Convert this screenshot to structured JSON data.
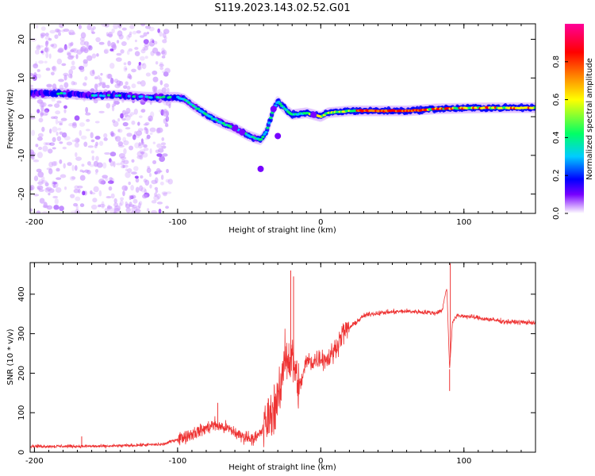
{
  "figure_title": "S119.2023.143.02.52.G01",
  "chart_data": [
    {
      "type": "heatmap",
      "xlabel": "Height of straight line (km)",
      "ylabel": "Frequency (Hz)",
      "xlim": [
        -203,
        150
      ],
      "ylim": [
        -25,
        24
      ],
      "x_ticks": [
        -200,
        -100,
        0,
        100
      ],
      "y_ticks": [
        -20,
        -10,
        0,
        10,
        20
      ],
      "x_tick_labels": [
        "-200",
        "-100",
        "0",
        "100"
      ],
      "y_tick_labels": [
        "-20",
        "-10",
        "0",
        "10",
        "20"
      ],
      "colorbar": {
        "label": "Normalized spectral amplitude",
        "range": [
          0.0,
          1.0
        ],
        "ticks": [
          "0.0",
          "0.2",
          "0.4",
          "0.6",
          "0.8"
        ],
        "colormap": [
          "#ffffff",
          "#cc99ff",
          "#7700ff",
          "#0000ff",
          "#00ccff",
          "#00ff66",
          "#ffff00",
          "#ff8800",
          "#ff0000",
          "#ff0099"
        ]
      },
      "ridge": {
        "x": [
          -200,
          -180,
          -160,
          -140,
          -120,
          -100,
          -95,
          -90,
          -80,
          -70,
          -60,
          -50,
          -42,
          -38,
          -33,
          -30,
          -25,
          -20,
          -10,
          -5,
          0,
          5,
          20,
          40,
          60,
          80,
          100,
          120,
          150
        ],
        "y": [
          6,
          6,
          5.5,
          5.5,
          5,
          5,
          4.5,
          3,
          0.5,
          -1.5,
          -3,
          -5,
          -6,
          -4,
          2,
          4,
          2,
          0.5,
          1,
          0.5,
          0,
          1,
          1.5,
          1.5,
          1.5,
          2,
          2.2,
          2.3,
          2.3
        ]
      },
      "grid": false
    },
    {
      "type": "line",
      "xlabel": "Height of straight line (km)",
      "ylabel": "SNR (10 * v/v)",
      "xlim": [
        -203,
        150
      ],
      "ylim": [
        0,
        480
      ],
      "x_ticks": [
        -200,
        -100,
        0,
        100
      ],
      "y_ticks": [
        0,
        100,
        200,
        300,
        400
      ],
      "x_tick_labels": [
        "-200",
        "-100",
        "0",
        "100"
      ],
      "y_tick_labels": [
        "0",
        "100",
        "200",
        "300",
        "400"
      ],
      "line_color": "#ee3333",
      "trend": {
        "x": [
          -203,
          -150,
          -110,
          -95,
          -80,
          -75,
          -65,
          -55,
          -45,
          -40,
          -35,
          -28,
          -25,
          -22,
          -20,
          -15,
          -10,
          -5,
          0,
          5,
          10,
          15,
          20,
          25,
          30,
          35,
          40,
          50,
          60,
          70,
          80,
          85,
          88,
          90,
          92,
          95,
          100,
          110,
          120,
          130,
          150
        ],
        "y": [
          15,
          15,
          20,
          40,
          60,
          70,
          60,
          40,
          35,
          60,
          95,
          150,
          260,
          230,
          240,
          160,
          230,
          230,
          240,
          235,
          260,
          300,
          315,
          330,
          345,
          350,
          352,
          355,
          357,
          355,
          352,
          360,
          420,
          210,
          330,
          345,
          345,
          340,
          335,
          330,
          328
        ]
      },
      "peaks": [
        {
          "x": -21,
          "y": 460
        },
        {
          "x": -19,
          "y": 445
        },
        {
          "x": 90.5,
          "y": 478
        },
        {
          "x": 90,
          "y": 155
        },
        {
          "x": -72,
          "y": 125
        },
        {
          "x": -167,
          "y": 40
        }
      ],
      "grid": false
    }
  ]
}
